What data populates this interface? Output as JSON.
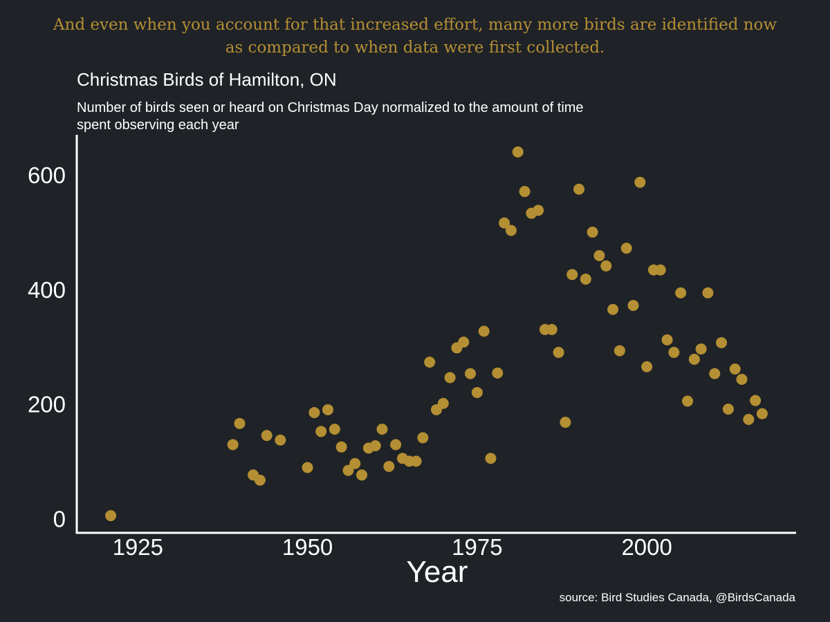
{
  "headline": {
    "line1": "And even when you account for that increased effort, many more birds are identified now",
    "line2": "as compared to when data were first collected."
  },
  "colors": {
    "background": "#1f2227",
    "accent": "#b48f33",
    "text": "#ffffff"
  },
  "chart_data": {
    "type": "scatter",
    "title": "Christmas Birds of Hamilton, ON",
    "subtitle_line1": "Number of birds seen or heard on Christmas Day normalized to the amount of time",
    "subtitle_line2": "spent observing each year",
    "xlabel": "Year",
    "ylabel": "",
    "source": "source: Bird Studies Canada, @BirdsCanada",
    "xlim": [
      1916,
      2022
    ],
    "ylim": [
      -25,
      670
    ],
    "xticks": [
      1925,
      1950,
      1975,
      2000
    ],
    "yticks": [
      0,
      200,
      400,
      600
    ],
    "grid": false,
    "legend": "none",
    "point_color": "#b48f33",
    "points": [
      {
        "x": 1921,
        "y": 5
      },
      {
        "x": 1939,
        "y": 129
      },
      {
        "x": 1940,
        "y": 166
      },
      {
        "x": 1942,
        "y": 76
      },
      {
        "x": 1943,
        "y": 67
      },
      {
        "x": 1944,
        "y": 145
      },
      {
        "x": 1946,
        "y": 137
      },
      {
        "x": 1950,
        "y": 89
      },
      {
        "x": 1951,
        "y": 185
      },
      {
        "x": 1952,
        "y": 152
      },
      {
        "x": 1953,
        "y": 190
      },
      {
        "x": 1954,
        "y": 156
      },
      {
        "x": 1955,
        "y": 125
      },
      {
        "x": 1956,
        "y": 84
      },
      {
        "x": 1957,
        "y": 96
      },
      {
        "x": 1958,
        "y": 76
      },
      {
        "x": 1959,
        "y": 123
      },
      {
        "x": 1960,
        "y": 127
      },
      {
        "x": 1961,
        "y": 156
      },
      {
        "x": 1962,
        "y": 91
      },
      {
        "x": 1963,
        "y": 129
      },
      {
        "x": 1964,
        "y": 105
      },
      {
        "x": 1965,
        "y": 100
      },
      {
        "x": 1966,
        "y": 100
      },
      {
        "x": 1967,
        "y": 141
      },
      {
        "x": 1968,
        "y": 273
      },
      {
        "x": 1969,
        "y": 190
      },
      {
        "x": 1970,
        "y": 201
      },
      {
        "x": 1971,
        "y": 246
      },
      {
        "x": 1972,
        "y": 298
      },
      {
        "x": 1973,
        "y": 308
      },
      {
        "x": 1974,
        "y": 253
      },
      {
        "x": 1975,
        "y": 220
      },
      {
        "x": 1976,
        "y": 327
      },
      {
        "x": 1977,
        "y": 105
      },
      {
        "x": 1978,
        "y": 254
      },
      {
        "x": 1979,
        "y": 516
      },
      {
        "x": 1980,
        "y": 503
      },
      {
        "x": 1981,
        "y": 640
      },
      {
        "x": 1982,
        "y": 571
      },
      {
        "x": 1983,
        "y": 533
      },
      {
        "x": 1984,
        "y": 538
      },
      {
        "x": 1985,
        "y": 330
      },
      {
        "x": 1986,
        "y": 330
      },
      {
        "x": 1987,
        "y": 290
      },
      {
        "x": 1988,
        "y": 168
      },
      {
        "x": 1989,
        "y": 426
      },
      {
        "x": 1990,
        "y": 575
      },
      {
        "x": 1991,
        "y": 418
      },
      {
        "x": 1992,
        "y": 500
      },
      {
        "x": 1993,
        "y": 459
      },
      {
        "x": 1994,
        "y": 441
      },
      {
        "x": 1995,
        "y": 365
      },
      {
        "x": 1996,
        "y": 293
      },
      {
        "x": 1997,
        "y": 472
      },
      {
        "x": 1998,
        "y": 372
      },
      {
        "x": 1999,
        "y": 587
      },
      {
        "x": 2000,
        "y": 265
      },
      {
        "x": 2001,
        "y": 434
      },
      {
        "x": 2002,
        "y": 434
      },
      {
        "x": 2003,
        "y": 312
      },
      {
        "x": 2004,
        "y": 290
      },
      {
        "x": 2005,
        "y": 394
      },
      {
        "x": 2006,
        "y": 205
      },
      {
        "x": 2007,
        "y": 278
      },
      {
        "x": 2008,
        "y": 296
      },
      {
        "x": 2009,
        "y": 394
      },
      {
        "x": 2010,
        "y": 253
      },
      {
        "x": 2011,
        "y": 307
      },
      {
        "x": 2012,
        "y": 191
      },
      {
        "x": 2013,
        "y": 261
      },
      {
        "x": 2014,
        "y": 243
      },
      {
        "x": 2015,
        "y": 173
      },
      {
        "x": 2016,
        "y": 206
      },
      {
        "x": 2017,
        "y": 183
      }
    ]
  }
}
